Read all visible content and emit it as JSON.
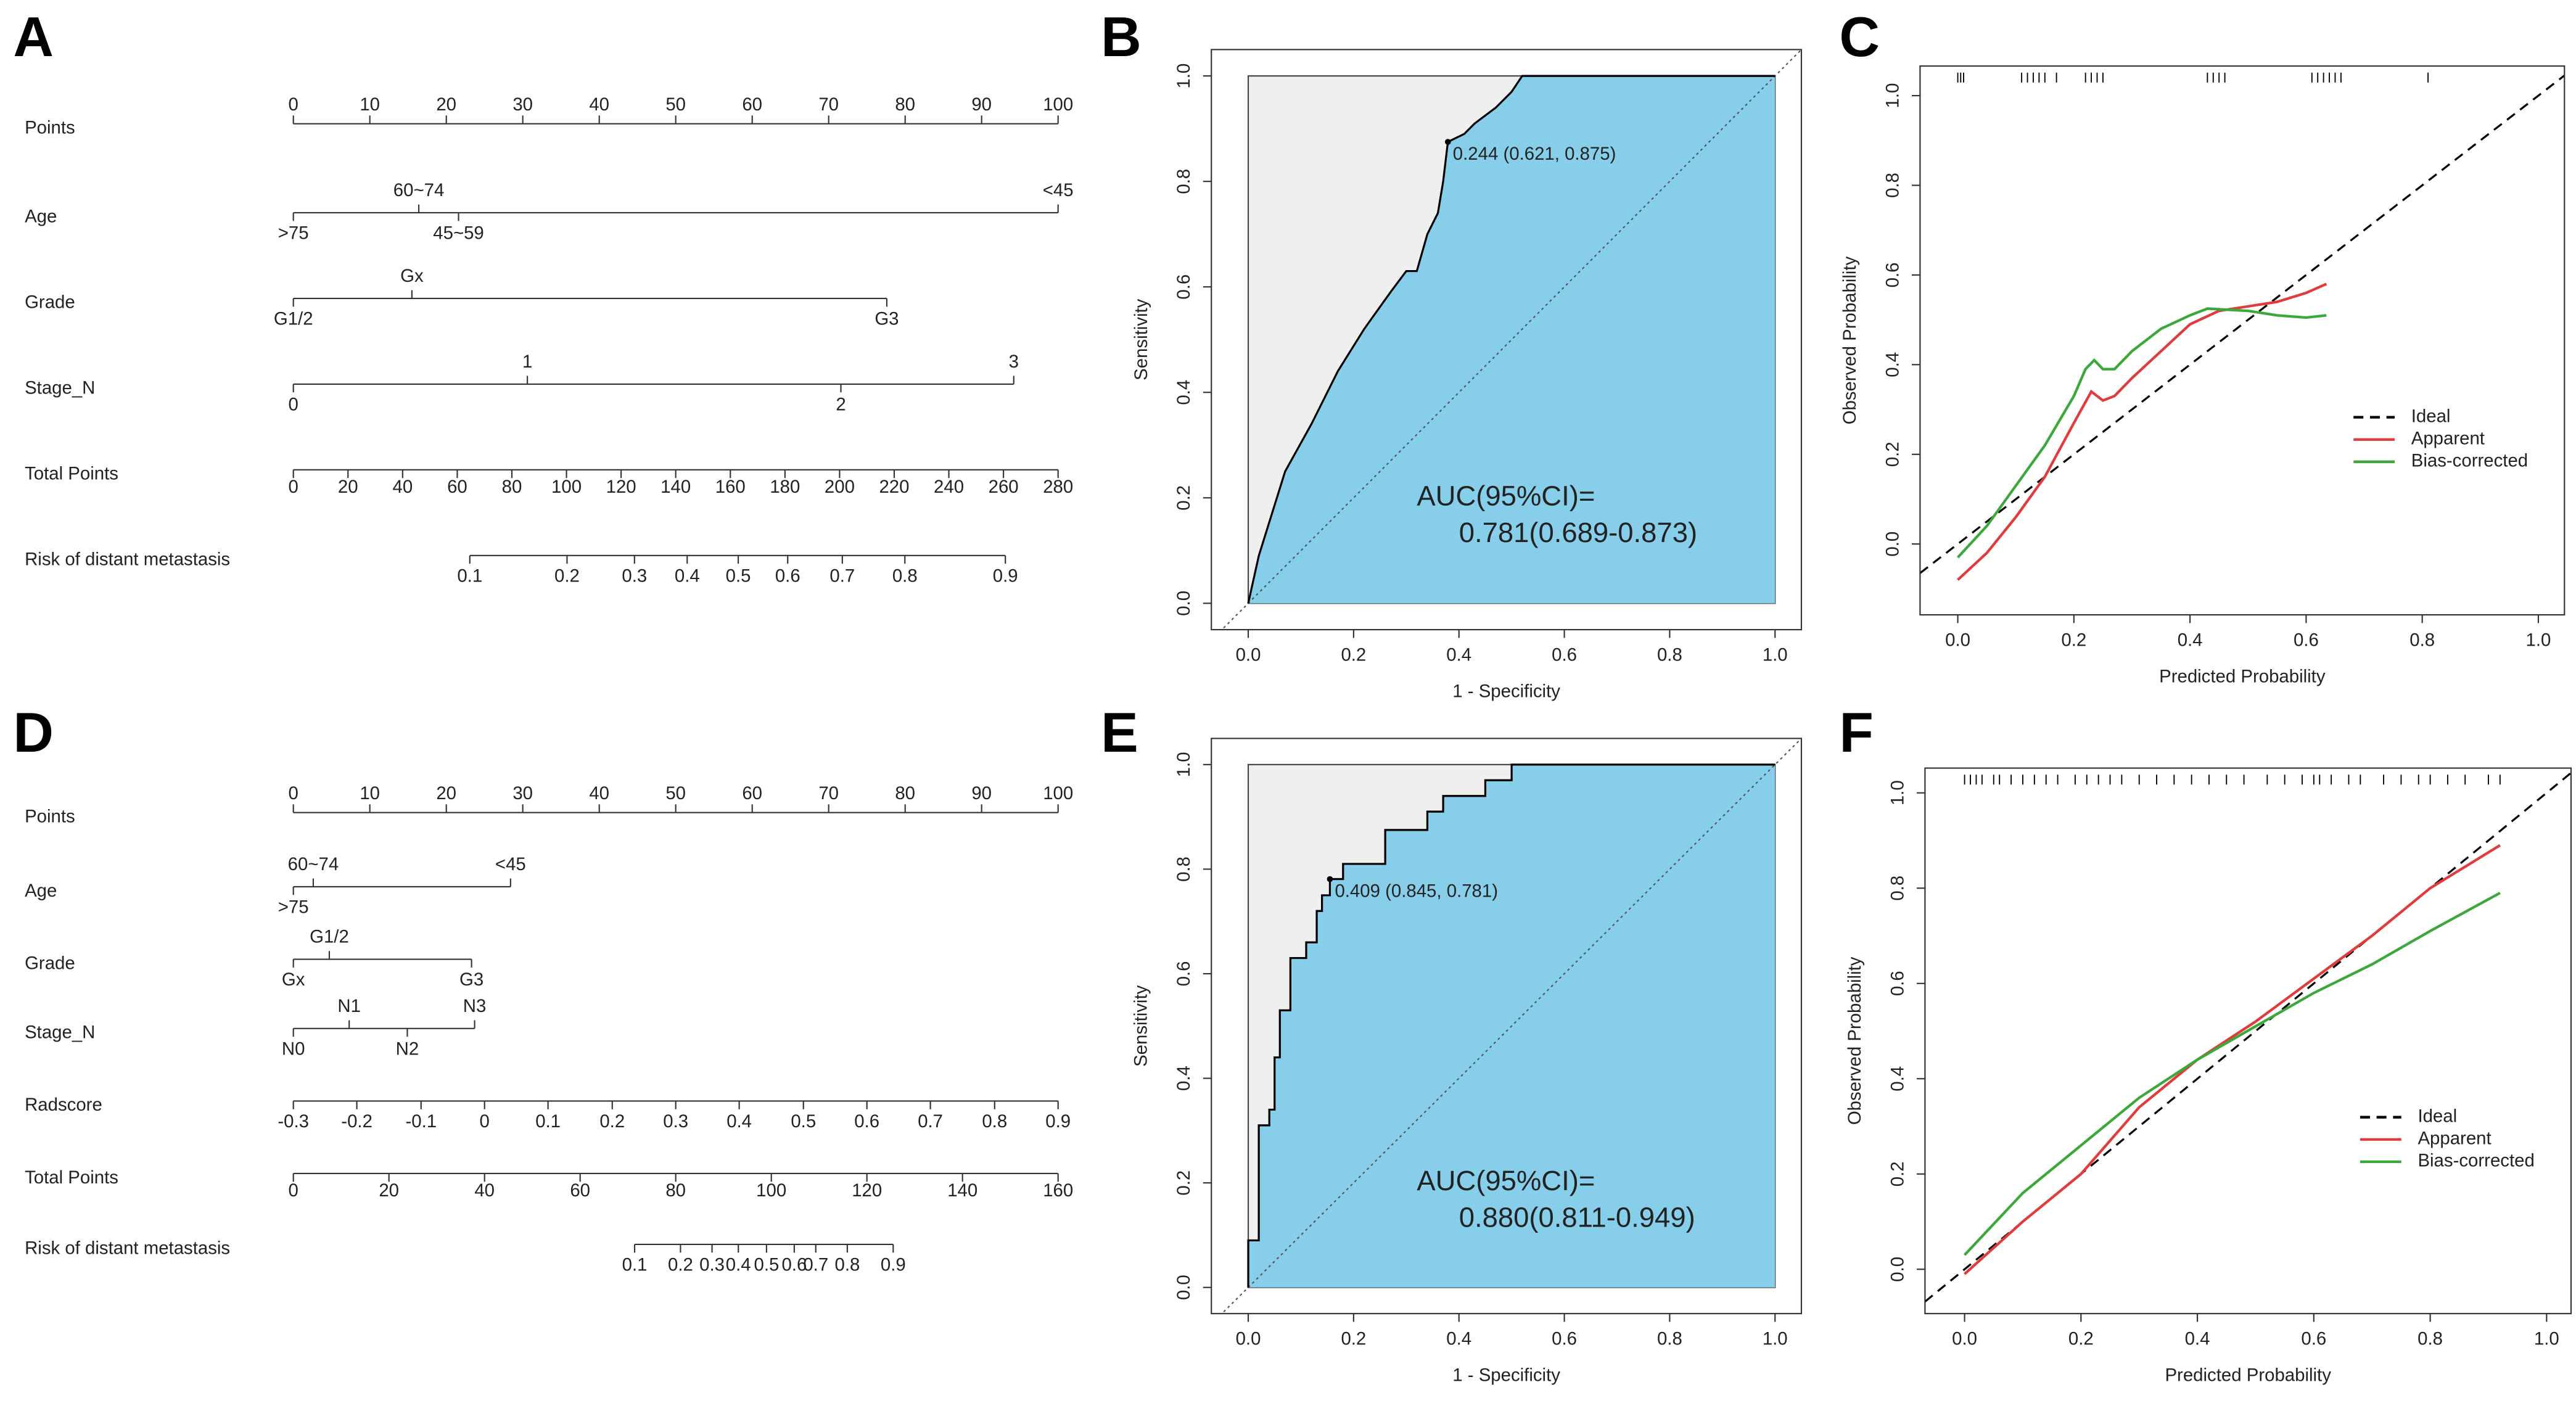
{
  "chart_data": [
    {
      "panel": "A",
      "type": "nomogram",
      "points_lim": [
        0,
        100
      ],
      "total_points_lim": [
        0,
        280
      ],
      "rows": [
        {
          "name": "Points",
          "scale": "points",
          "side": "above",
          "ticks": [
            0,
            10,
            20,
            30,
            40,
            50,
            60,
            70,
            80,
            90,
            100
          ]
        },
        {
          "name": "Age",
          "levels": [
            {
              "label": ">75",
              "points": 0,
              "side": "below"
            },
            {
              "label": "60~74",
              "points": 16.4,
              "side": "above"
            },
            {
              "label": "45~59",
              "points": 21.6,
              "side": "below"
            },
            {
              "label": "<45",
              "points": 100,
              "side": "above"
            }
          ]
        },
        {
          "name": "Grade",
          "levels": [
            {
              "label": "G1/2",
              "points": 0,
              "side": "below"
            },
            {
              "label": "Gx",
              "points": 15.5,
              "side": "above"
            },
            {
              "label": "G3",
              "points": 77.6,
              "side": "below"
            }
          ]
        },
        {
          "name": "Stage_N",
          "levels": [
            {
              "label": "0",
              "points": 0,
              "side": "below"
            },
            {
              "label": "1",
              "points": 30.6,
              "side": "above"
            },
            {
              "label": "2",
              "points": 71.6,
              "side": "below"
            },
            {
              "label": "3",
              "points": 94.2,
              "side": "above"
            }
          ]
        },
        {
          "name": "Total Points",
          "scale": "total_points",
          "side": "below",
          "ticks": [
            0,
            20,
            40,
            60,
            80,
            100,
            120,
            140,
            160,
            180,
            200,
            220,
            240,
            260,
            280
          ]
        },
        {
          "name": "Risk of distant metastasis",
          "levels": [
            {
              "value": 0.1,
              "total_points": 64.6,
              "side": "below"
            },
            {
              "value": 0.2,
              "total_points": 100.2,
              "side": "below"
            },
            {
              "value": 0.3,
              "total_points": 124.9,
              "side": "below"
            },
            {
              "value": 0.4,
              "total_points": 144.2,
              "side": "below"
            },
            {
              "value": 0.5,
              "total_points": 162.9,
              "side": "below"
            },
            {
              "value": 0.6,
              "total_points": 181,
              "side": "below"
            },
            {
              "value": 0.7,
              "total_points": 201,
              "side": "below"
            },
            {
              "value": 0.8,
              "total_points": 223.9,
              "side": "below"
            },
            {
              "value": 0.9,
              "total_points": 260.7,
              "side": "below"
            }
          ]
        }
      ]
    },
    {
      "panel": "B",
      "type": "roc",
      "xlabel": "1 - Specificity",
      "ylabel": "Sensitivity",
      "x": [
        0,
        0.02,
        0.07,
        0.12,
        0.17,
        0.22,
        0.27,
        0.3,
        0.32,
        0.34,
        0.36,
        0.37,
        0.379,
        0.41,
        0.43,
        0.47,
        0.5,
        0.52,
        1
      ],
      "values": [
        0,
        0.09,
        0.25,
        0.34,
        0.44,
        0.52,
        0.59,
        0.63,
        0.63,
        0.7,
        0.74,
        0.8,
        0.875,
        0.89,
        0.91,
        0.94,
        0.97,
        1,
        1
      ],
      "threshold": {
        "x": 0.379,
        "y": 0.875,
        "label": "0.244 (0.621, 0.875)"
      },
      "auc_label": [
        "AUC(95%CI)=",
        "0.781(0.689-0.873)"
      ],
      "curve_color": "#000000",
      "fill_color": "#87ceeb",
      "background_color": "#efefef",
      "xlim": [
        -0.07,
        1.05
      ],
      "ylim": [
        -0.05,
        1.05
      ],
      "xticks": [
        {
          "value": 0,
          "label": "0.0"
        },
        0.2,
        0.4,
        0.6,
        0.8,
        {
          "value": 1,
          "label": "1.0"
        }
      ],
      "yticks": [
        {
          "value": 0,
          "label": "0.0"
        },
        0.2,
        0.4,
        0.6,
        0.8,
        {
          "value": 1,
          "label": "1.0"
        }
      ]
    },
    {
      "panel": "C",
      "type": "calibration",
      "xlabel": "Predicted Probability",
      "ylabel": "Observed Probability",
      "legend": "right",
      "series": [
        {
          "name": "Ideal",
          "color": "#000000",
          "style": "dashed"
        },
        {
          "name": "Apparent",
          "color": "#e03c3c",
          "x": [
            0,
            0.05,
            0.1,
            0.15,
            0.2,
            0.23,
            0.25,
            0.27,
            0.3,
            0.35,
            0.4,
            0.45,
            0.5,
            0.55,
            0.6,
            0.635
          ],
          "values": [
            -0.08,
            -0.02,
            0.06,
            0.15,
            0.27,
            0.34,
            0.32,
            0.33,
            0.37,
            0.43,
            0.49,
            0.52,
            0.53,
            0.54,
            0.56,
            0.58
          ]
        },
        {
          "name": "Bias-corrected",
          "color": "#3ca83c",
          "x": [
            0,
            0.05,
            0.1,
            0.15,
            0.2,
            0.22,
            0.235,
            0.25,
            0.27,
            0.3,
            0.35,
            0.4,
            0.43,
            0.5,
            0.55,
            0.6,
            0.635
          ],
          "values": [
            -0.03,
            0.04,
            0.13,
            0.22,
            0.33,
            0.39,
            0.41,
            0.39,
            0.39,
            0.43,
            0.48,
            0.51,
            0.525,
            0.52,
            0.51,
            0.505,
            0.51
          ]
        }
      ],
      "rug": [
        0,
        0.005,
        0.01,
        0.11,
        0.12,
        0.13,
        0.14,
        0.15,
        0.17,
        0.22,
        0.23,
        0.24,
        0.25,
        0.43,
        0.44,
        0.45,
        0.46,
        0.61,
        0.62,
        0.63,
        0.64,
        0.65,
        0.66,
        0.81
      ],
      "xlim": [
        -0.065,
        1.045
      ],
      "ylim": [
        -0.158,
        1.066
      ],
      "xticks": [
        {
          "value": 0,
          "label": "0.0"
        },
        0.2,
        0.4,
        0.6,
        0.8,
        {
          "value": 1,
          "label": "1.0"
        }
      ],
      "yticks": [
        {
          "value": 0,
          "label": "0.0"
        },
        0.2,
        0.4,
        0.6,
        0.8,
        {
          "value": 1,
          "label": "1.0"
        }
      ]
    },
    {
      "panel": "D",
      "type": "nomogram",
      "points_lim": [
        0,
        100
      ],
      "total_points_lim": [
        0,
        160
      ],
      "rows": [
        {
          "name": "Points",
          "scale": "points",
          "side": "above",
          "ticks": [
            0,
            10,
            20,
            30,
            40,
            50,
            60,
            70,
            80,
            90,
            100
          ]
        },
        {
          "name": "Age",
          "levels": [
            {
              "label": ">75",
              "points": 0,
              "side": "below"
            },
            {
              "label": "60~74",
              "points": 2.6,
              "side": "above"
            },
            {
              "label": "<45",
              "points": 28.4,
              "side": "above"
            }
          ]
        },
        {
          "name": "Grade",
          "levels": [
            {
              "label": "Gx",
              "points": 0,
              "side": "below"
            },
            {
              "label": "G1/2",
              "points": 4.7,
              "side": "above"
            },
            {
              "label": "G3",
              "points": 23.3,
              "side": "below"
            }
          ]
        },
        {
          "name": "Stage_N",
          "levels": [
            {
              "label": "N0",
              "points": 0,
              "side": "below"
            },
            {
              "label": "N1",
              "points": 7.3,
              "side": "above"
            },
            {
              "label": "N2",
              "points": 14.9,
              "side": "below"
            },
            {
              "label": "N3",
              "points": 23.7,
              "side": "above"
            }
          ]
        },
        {
          "name": "Radscore",
          "levels": [
            {
              "value": -0.3,
              "points": 0,
              "side": "below"
            },
            {
              "value": -0.2,
              "points": 8.3,
              "side": "below"
            },
            {
              "value": -0.1,
              "points": 16.7,
              "side": "below"
            },
            {
              "value": 0,
              "points": 25,
              "side": "below"
            },
            {
              "value": 0.1,
              "points": 33.3,
              "side": "below"
            },
            {
              "value": 0.2,
              "points": 41.7,
              "side": "below"
            },
            {
              "value": 0.3,
              "points": 50,
              "side": "below"
            },
            {
              "value": 0.4,
              "points": 58.3,
              "side": "below"
            },
            {
              "value": 0.5,
              "points": 66.7,
              "side": "below"
            },
            {
              "value": 0.6,
              "points": 75,
              "side": "below"
            },
            {
              "value": 0.7,
              "points": 83.3,
              "side": "below"
            },
            {
              "value": 0.8,
              "points": 91.7,
              "side": "below"
            },
            {
              "value": 0.9,
              "points": 100,
              "side": "below"
            }
          ]
        },
        {
          "name": "Total Points",
          "scale": "total_points",
          "side": "below",
          "ticks": [
            0,
            20,
            40,
            60,
            80,
            100,
            120,
            140,
            160
          ]
        },
        {
          "name": "Risk of distant metastasis",
          "levels": [
            {
              "value": 0.1,
              "total_points": 71.4,
              "side": "below"
            },
            {
              "value": 0.2,
              "total_points": 81,
              "side": "below"
            },
            {
              "value": 0.3,
              "total_points": 87.6,
              "side": "below"
            },
            {
              "value": 0.4,
              "total_points": 93.1,
              "side": "below"
            },
            {
              "value": 0.5,
              "total_points": 99,
              "side": "below"
            },
            {
              "value": 0.6,
              "total_points": 104.8,
              "side": "below"
            },
            {
              "value": 0.7,
              "total_points": 109.3,
              "side": "below"
            },
            {
              "value": 0.8,
              "total_points": 115.9,
              "side": "below"
            },
            {
              "value": 0.9,
              "total_points": 125.5,
              "side": "below"
            }
          ]
        }
      ]
    },
    {
      "panel": "E",
      "type": "roc",
      "xlabel": "1 - Specificity",
      "ylabel": "Sensitivity",
      "x": [
        0,
        0,
        0.02,
        0.02,
        0.04,
        0.04,
        0.05,
        0.05,
        0.06,
        0.06,
        0.08,
        0.08,
        0.11,
        0.11,
        0.13,
        0.13,
        0.14,
        0.14,
        0.155,
        0.155,
        0.18,
        0.18,
        0.26,
        0.26,
        0.34,
        0.34,
        0.37,
        0.37,
        0.45,
        0.45,
        0.5,
        0.5,
        1
      ],
      "values": [
        0,
        0.09,
        0.09,
        0.31,
        0.31,
        0.34,
        0.34,
        0.44,
        0.44,
        0.53,
        0.53,
        0.63,
        0.63,
        0.66,
        0.66,
        0.72,
        0.72,
        0.75,
        0.75,
        0.781,
        0.781,
        0.81,
        0.81,
        0.875,
        0.875,
        0.91,
        0.91,
        0.94,
        0.94,
        0.97,
        0.97,
        1,
        1
      ],
      "threshold": {
        "x": 0.155,
        "y": 0.781,
        "label": "0.409 (0.845, 0.781)"
      },
      "auc_label": [
        "AUC(95%CI)=",
        "0.880(0.811-0.949)"
      ],
      "curve_color": "#000000",
      "fill_color": "#87ceeb",
      "background_color": "#efefef",
      "xlim": [
        -0.07,
        1.05
      ],
      "ylim": [
        -0.05,
        1.05
      ],
      "xticks": [
        {
          "value": 0,
          "label": "0.0"
        },
        0.2,
        0.4,
        0.6,
        0.8,
        {
          "value": 1,
          "label": "1.0"
        }
      ],
      "yticks": [
        {
          "value": 0,
          "label": "0.0"
        },
        0.2,
        0.4,
        0.6,
        0.8,
        {
          "value": 1,
          "label": "1.0"
        }
      ]
    },
    {
      "panel": "F",
      "type": "calibration",
      "xlabel": "Predicted Probability",
      "ylabel": "Observed Probability",
      "legend": "right",
      "series": [
        {
          "name": "Ideal",
          "color": "#000000",
          "style": "dashed"
        },
        {
          "name": "Apparent",
          "color": "#e03c3c",
          "x": [
            0,
            0.1,
            0.2,
            0.3,
            0.4,
            0.5,
            0.6,
            0.7,
            0.8,
            0.92
          ],
          "values": [
            -0.01,
            0.1,
            0.2,
            0.34,
            0.44,
            0.52,
            0.61,
            0.7,
            0.8,
            0.89
          ]
        },
        {
          "name": "Bias-corrected",
          "color": "#3ca83c",
          "x": [
            0,
            0.1,
            0.2,
            0.3,
            0.4,
            0.5,
            0.6,
            0.7,
            0.8,
            0.92
          ],
          "values": [
            0.03,
            0.16,
            0.26,
            0.36,
            0.44,
            0.51,
            0.58,
            0.64,
            0.71,
            0.79
          ]
        }
      ],
      "rug": [
        0,
        0.01,
        0.02,
        0.03,
        0.05,
        0.06,
        0.08,
        0.1,
        0.12,
        0.14,
        0.16,
        0.19,
        0.21,
        0.23,
        0.25,
        0.27,
        0.3,
        0.33,
        0.36,
        0.39,
        0.42,
        0.45,
        0.48,
        0.52,
        0.55,
        0.58,
        0.6,
        0.61,
        0.63,
        0.66,
        0.68,
        0.72,
        0.75,
        0.78,
        0.8,
        0.83,
        0.86,
        0.9,
        0.92
      ],
      "xlim": [
        -0.068,
        1.042
      ],
      "ylim": [
        -0.093,
        1.052
      ],
      "xticks": [
        {
          "value": 0,
          "label": "0.0"
        },
        0.2,
        0.4,
        0.6,
        0.8,
        {
          "value": 1,
          "label": "1.0"
        }
      ],
      "yticks": [
        {
          "value": 0,
          "label": "0.0"
        },
        0.2,
        0.4,
        0.6,
        0.8,
        {
          "value": 1,
          "label": "1.0"
        }
      ]
    }
  ]
}
